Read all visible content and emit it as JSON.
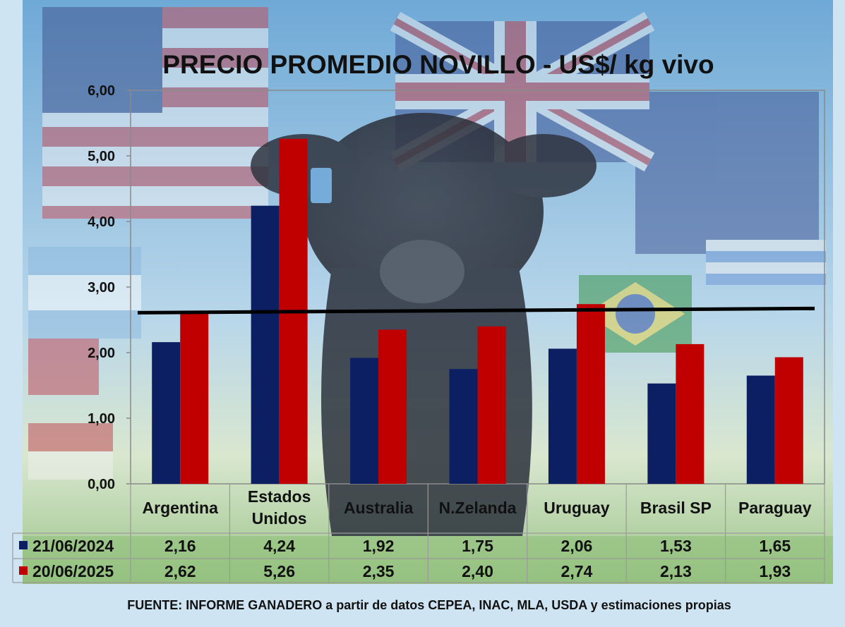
{
  "colors": {
    "series_2024": "#0b1f62",
    "series_2025": "#c00000",
    "reference_line": "#000000"
  },
  "chart_data": {
    "type": "bar",
    "title": "PRECIO PROMEDIO NOVILLO  - US$/ kg vivo",
    "categories": [
      "Argentina",
      "Estados Unidos",
      "Australia",
      "N.Zelanda",
      "Uruguay",
      "Brasil SP",
      "Paraguay"
    ],
    "category_lines": [
      [
        "Argentina"
      ],
      [
        "Estados",
        "Unidos"
      ],
      [
        "Australia"
      ],
      [
        "N.Zelanda"
      ],
      [
        "Uruguay"
      ],
      [
        "Brasil SP"
      ],
      [
        "Paraguay"
      ]
    ],
    "series": [
      {
        "name": "21/06/2024",
        "values": [
          2.16,
          4.24,
          1.92,
          1.75,
          2.06,
          1.53,
          1.65
        ],
        "labels": [
          "2,16",
          "4,24",
          "1,92",
          "1,75",
          "2,06",
          "1,53",
          "1,65"
        ]
      },
      {
        "name": "20/06/2025",
        "values": [
          2.62,
          5.26,
          2.35,
          2.4,
          2.74,
          2.13,
          1.93
        ],
        "labels": [
          "2,62",
          "5,26",
          "2,35",
          "2,40",
          "2,74",
          "2,13",
          "1,93"
        ]
      }
    ],
    "reference_line": {
      "y_start": 2.62,
      "y_end": 2.62
    },
    "ylim": [
      0,
      6
    ],
    "yticks": [
      0,
      1,
      2,
      3,
      4,
      5,
      6
    ],
    "ytick_labels": [
      "0,00",
      "1,00",
      "2,00",
      "3,00",
      "4,00",
      "5,00",
      "6,00"
    ],
    "data_table": true,
    "grid": false,
    "legend": "data-table-left"
  },
  "footer": {
    "source": "FUENTE: INFORME GANADERO  a partir de datos CEPEA, INAC, MLA, USDA y estimaciones propias"
  }
}
